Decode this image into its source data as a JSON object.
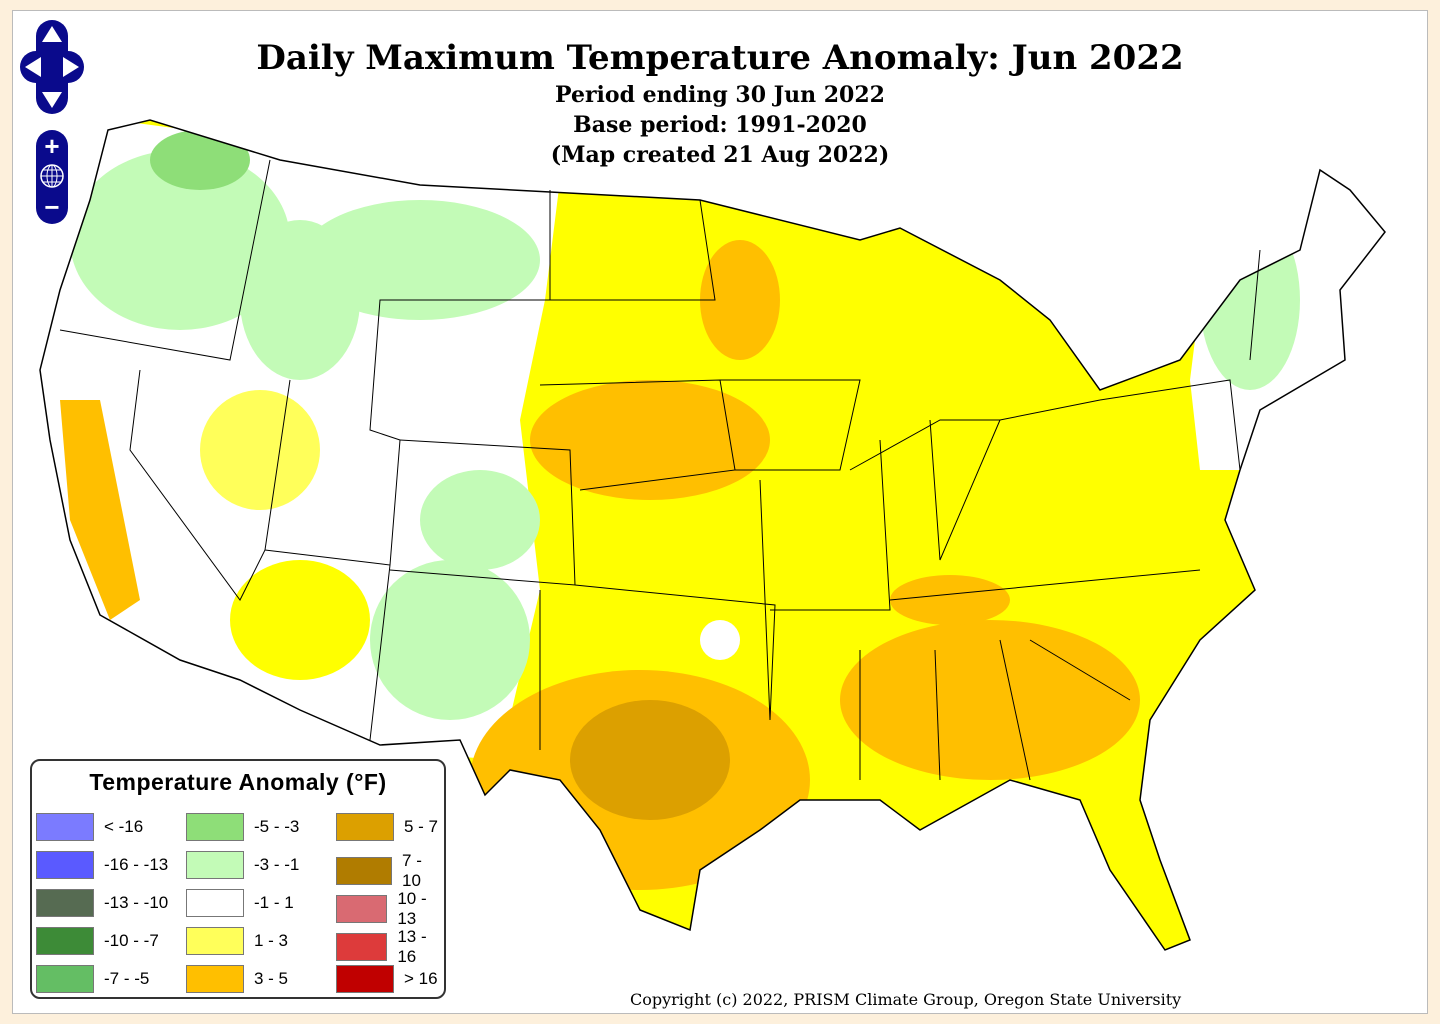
{
  "title": "Daily Maximum Temperature Anomaly: Jun 2022",
  "subtitle_lines": [
    "Period ending 30 Jun 2022",
    "Base period: 1991-2020",
    "(Map created 21 Aug 2022)"
  ],
  "controls": {
    "pan": "pan-arrows-icon",
    "zoom_in": "+",
    "zoom_out": "−",
    "globe": "globe-icon"
  },
  "legend": {
    "title": "Temperature Anomaly (°F)",
    "items": [
      {
        "label": "< -16",
        "color": "#7b7bff"
      },
      {
        "label": "-16 - -13",
        "color": "#5a5aff"
      },
      {
        "label": "-13 - -10",
        "color": "#566b52"
      },
      {
        "label": "-10 - -7",
        "color": "#3d8b37"
      },
      {
        "label": "-7 - -5",
        "color": "#64be64"
      },
      {
        "label": "-5 - -3",
        "color": "#8ede78"
      },
      {
        "label": "-3 - -1",
        "color": "#c3fbb7"
      },
      {
        "label": "-1 - 1",
        "color": "#ffffff"
      },
      {
        "label": "1 - 3",
        "color": "#ffff5a"
      },
      {
        "label": "3 - 5",
        "color": "#ffbf00"
      },
      {
        "label": "5 - 7",
        "color": "#dca000"
      },
      {
        "label": "7 - 10",
        "color": "#b07c00"
      },
      {
        "label": "10 - 13",
        "color": "#d96a72"
      },
      {
        "label": "13 - 16",
        "color": "#dd3b3b"
      },
      {
        "label": "> 16",
        "color": "#c00000"
      }
    ]
  },
  "copyright": "Copyright (c) 2022, PRISM Climate Group, Oregon State University"
}
